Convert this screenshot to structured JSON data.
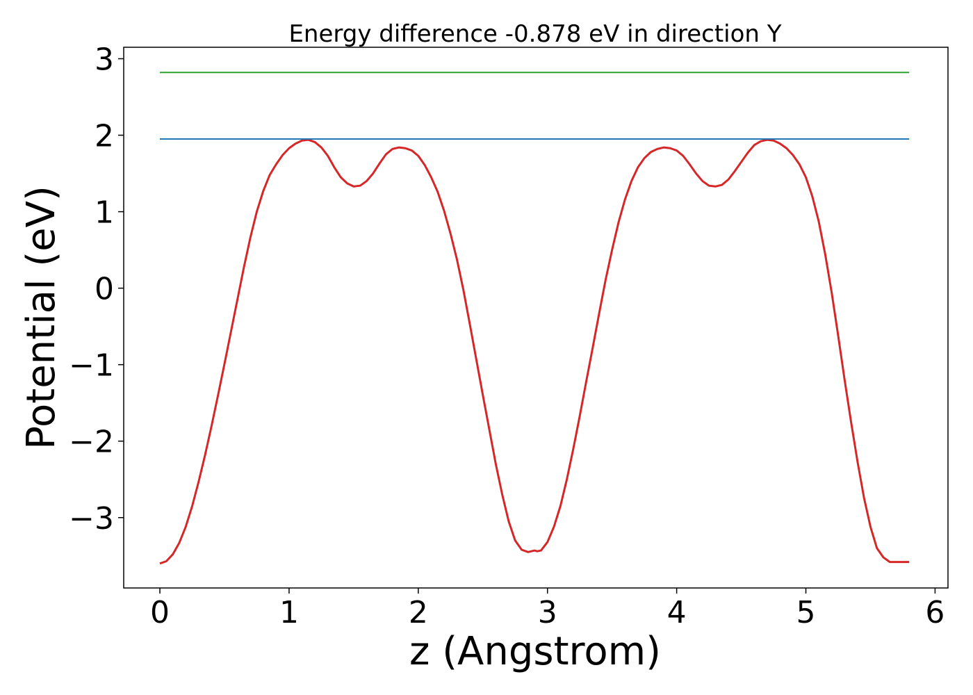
{
  "chart_data": {
    "type": "line",
    "title": "Energy difference -0.878 eV in direction Y",
    "xlabel": "z (Angstrom)",
    "ylabel": "Potential (eV)",
    "xlim": [
      -0.28,
      6.1
    ],
    "ylim": [
      -3.92,
      3.15
    ],
    "xticks": [
      0,
      1,
      2,
      3,
      4,
      5,
      6
    ],
    "xtick_labels": [
      "0",
      "1",
      "2",
      "3",
      "4",
      "5",
      "6"
    ],
    "yticks": [
      -3,
      -2,
      -1,
      0,
      1,
      2,
      3
    ],
    "ytick_labels": [
      "−3",
      "−2",
      "−1",
      "0",
      "1",
      "2",
      "3"
    ],
    "grid": false,
    "legend": "none",
    "series": [
      {
        "color": "#d62728",
        "x": [
          0.0,
          0.05,
          0.1,
          0.15,
          0.2,
          0.25,
          0.3,
          0.35,
          0.4,
          0.45,
          0.5,
          0.55,
          0.6,
          0.65,
          0.7,
          0.75,
          0.8,
          0.85,
          0.9,
          0.95,
          1.0,
          1.05,
          1.1,
          1.15,
          1.2,
          1.25,
          1.3,
          1.35,
          1.4,
          1.45,
          1.5,
          1.55,
          1.6,
          1.65,
          1.7,
          1.75,
          1.8,
          1.85,
          1.9,
          1.95,
          2.0,
          2.05,
          2.1,
          2.15,
          2.2,
          2.25,
          2.3,
          2.35,
          2.4,
          2.45,
          2.5,
          2.55,
          2.6,
          2.65,
          2.7,
          2.75,
          2.8,
          2.85,
          2.9,
          2.92,
          2.95,
          3.0,
          3.05,
          3.1,
          3.15,
          3.2,
          3.25,
          3.3,
          3.35,
          3.4,
          3.45,
          3.5,
          3.55,
          3.6,
          3.65,
          3.7,
          3.75,
          3.8,
          3.85,
          3.9,
          3.95,
          4.0,
          4.05,
          4.1,
          4.15,
          4.2,
          4.25,
          4.3,
          4.35,
          4.4,
          4.45,
          4.5,
          4.55,
          4.6,
          4.65,
          4.7,
          4.75,
          4.8,
          4.85,
          4.9,
          4.95,
          5.0,
          5.05,
          5.1,
          5.15,
          5.2,
          5.25,
          5.3,
          5.35,
          5.4,
          5.45,
          5.5,
          5.55,
          5.6,
          5.65,
          5.7,
          5.75,
          5.8
        ],
        "y": [
          -3.6,
          -3.57,
          -3.48,
          -3.33,
          -3.12,
          -2.85,
          -2.53,
          -2.18,
          -1.8,
          -1.4,
          -0.99,
          -0.57,
          -0.15,
          0.27,
          0.66,
          1.0,
          1.27,
          1.48,
          1.62,
          1.74,
          1.83,
          1.89,
          1.93,
          1.94,
          1.91,
          1.84,
          1.73,
          1.58,
          1.45,
          1.37,
          1.33,
          1.34,
          1.4,
          1.5,
          1.63,
          1.75,
          1.82,
          1.84,
          1.83,
          1.8,
          1.73,
          1.61,
          1.45,
          1.26,
          1.01,
          0.71,
          0.37,
          -0.03,
          -0.48,
          -0.94,
          -1.4,
          -1.85,
          -2.3,
          -2.7,
          -3.05,
          -3.3,
          -3.42,
          -3.45,
          -3.43,
          -3.44,
          -3.43,
          -3.32,
          -3.12,
          -2.85,
          -2.5,
          -2.1,
          -1.67,
          -1.22,
          -0.78,
          -0.33,
          0.11,
          0.5,
          0.86,
          1.16,
          1.4,
          1.58,
          1.7,
          1.78,
          1.82,
          1.84,
          1.83,
          1.8,
          1.73,
          1.62,
          1.5,
          1.4,
          1.34,
          1.33,
          1.35,
          1.42,
          1.53,
          1.65,
          1.77,
          1.87,
          1.92,
          1.94,
          1.93,
          1.89,
          1.83,
          1.74,
          1.62,
          1.45,
          1.2,
          0.87,
          0.44,
          -0.06,
          -0.62,
          -1.2,
          -1.75,
          -2.27,
          -2.74,
          -3.12,
          -3.4,
          -3.52,
          -3.58,
          -3.58,
          -3.58,
          -3.58
        ]
      },
      {
        "color": "#1f77b4",
        "x": [
          0.0,
          5.8
        ],
        "y": [
          1.95,
          1.95
        ]
      },
      {
        "color": "#2ca02c",
        "x": [
          0.0,
          5.8
        ],
        "y": [
          2.82,
          2.82
        ]
      }
    ]
  }
}
